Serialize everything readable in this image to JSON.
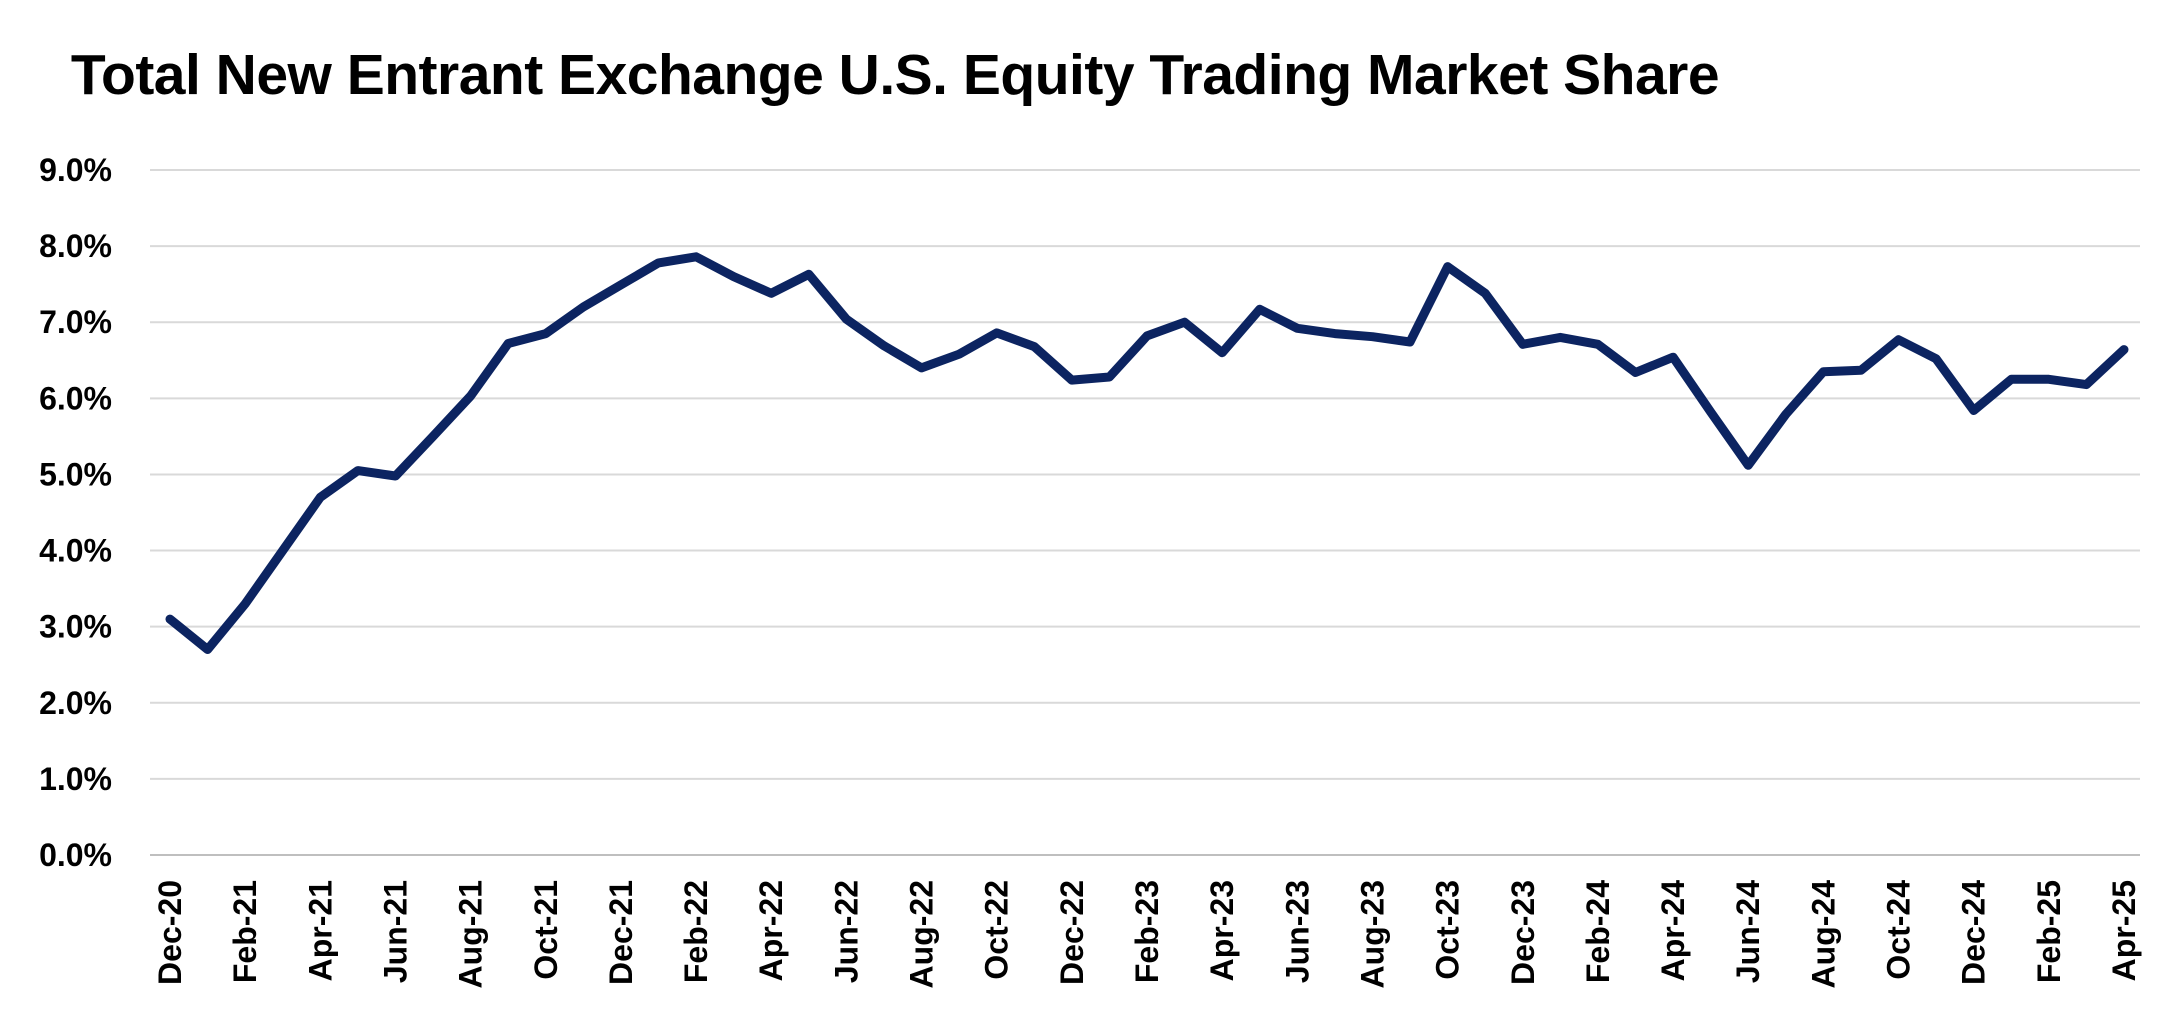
{
  "chart_data": {
    "type": "line",
    "title": "Total New Entrant Exchange U.S. Equity Trading Market Share",
    "xlabel": "",
    "ylabel": "",
    "ylim": [
      0,
      9
    ],
    "y_ticks": [
      0,
      1,
      2,
      3,
      4,
      5,
      6,
      7,
      8,
      9
    ],
    "y_tick_labels": [
      "0.0%",
      "1.0%",
      "2.0%",
      "3.0%",
      "4.0%",
      "5.0%",
      "6.0%",
      "7.0%",
      "8.0%",
      "9.0%"
    ],
    "grid": true,
    "legend": "none",
    "line_color": "#0c2461",
    "x": [
      "Dec-20",
      "Jan-21",
      "Feb-21",
      "Mar-21",
      "Apr-21",
      "May-21",
      "Jun-21",
      "Jul-21",
      "Aug-21",
      "Sep-21",
      "Oct-21",
      "Nov-21",
      "Dec-21",
      "Jan-22",
      "Feb-22",
      "Mar-22",
      "Apr-22",
      "May-22",
      "Jun-22",
      "Jul-22",
      "Aug-22",
      "Sep-22",
      "Oct-22",
      "Nov-22",
      "Dec-22",
      "Jan-23",
      "Feb-23",
      "Mar-23",
      "Apr-23",
      "May-23",
      "Jun-23",
      "Jul-23",
      "Aug-23",
      "Sep-23",
      "Oct-23",
      "Nov-23",
      "Dec-23",
      "Jan-24",
      "Feb-24",
      "Mar-24",
      "Apr-24",
      "May-24",
      "Jun-24",
      "Jul-24",
      "Aug-24",
      "Sep-24",
      "Oct-24",
      "Nov-24",
      "Dec-24",
      "Jan-25",
      "Feb-25",
      "Mar-25",
      "Apr-25"
    ],
    "x_tick_labels": [
      "Dec-20",
      "Feb-21",
      "Apr-21",
      "Jun-21",
      "Aug-21",
      "Oct-21",
      "Dec-21",
      "Feb-22",
      "Apr-22",
      "Jun-22",
      "Aug-22",
      "Oct-22",
      "Dec-22",
      "Feb-23",
      "Apr-23",
      "Jun-23",
      "Aug-23",
      "Oct-23",
      "Dec-23",
      "Feb-24",
      "Apr-24",
      "Jun-24",
      "Aug-24",
      "Oct-24",
      "Dec-24",
      "Feb-25",
      "Apr-25"
    ],
    "series": [
      {
        "values": [
          3.1,
          2.7,
          3.3,
          4.0,
          4.7,
          5.05,
          4.98,
          5.5,
          6.03,
          6.72,
          6.85,
          7.2,
          7.49,
          7.78,
          7.86,
          7.6,
          7.38,
          7.63,
          7.04,
          6.69,
          6.4,
          6.58,
          6.86,
          6.68,
          6.24,
          6.28,
          6.82,
          7.0,
          6.6,
          7.17,
          6.92,
          6.85,
          6.81,
          6.74,
          7.73,
          7.38,
          6.71,
          6.8,
          6.71,
          6.34,
          6.54,
          5.82,
          5.12,
          5.79,
          6.35,
          6.37,
          6.77,
          6.52,
          5.84,
          6.25,
          6.25,
          6.18,
          6.64
        ]
      }
    ]
  }
}
